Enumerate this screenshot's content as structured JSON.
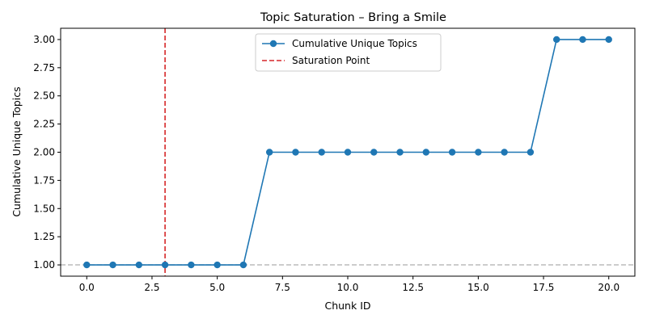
{
  "chart_data": {
    "type": "line",
    "title": "Topic Saturation – Bring a Smile",
    "xlabel": "Chunk ID",
    "ylabel": "Cumulative Unique Topics",
    "xlim": [
      -1,
      21
    ],
    "ylim": [
      0.9,
      3.1
    ],
    "xticks": [
      "0.0",
      "2.5",
      "5.0",
      "7.5",
      "10.0",
      "12.5",
      "15.0",
      "17.5",
      "20.0"
    ],
    "yticks": [
      "1.00",
      "1.25",
      "1.50",
      "1.75",
      "2.00",
      "2.25",
      "2.50",
      "2.75",
      "3.00"
    ],
    "grid": false,
    "legend_position": "top-center",
    "series": [
      {
        "name": "Cumulative Unique Topics",
        "color": "#1f77b4",
        "marker": "circle",
        "x": [
          0,
          1,
          2,
          3,
          4,
          5,
          6,
          7,
          8,
          9,
          10,
          11,
          12,
          13,
          14,
          15,
          16,
          17,
          18,
          19,
          20
        ],
        "y": [
          1,
          1,
          1,
          1,
          1,
          1,
          1,
          2,
          2,
          2,
          2,
          2,
          2,
          2,
          2,
          2,
          2,
          2,
          3,
          3,
          3
        ]
      }
    ],
    "reference_lines": [
      {
        "name": "Saturation Point",
        "orientation": "vertical",
        "x": 3,
        "color": "#d62728",
        "style": "dashed",
        "in_legend": true
      },
      {
        "orientation": "horizontal",
        "y": 1,
        "color": "#bbbbbb",
        "style": "dashed",
        "in_legend": false
      }
    ]
  }
}
